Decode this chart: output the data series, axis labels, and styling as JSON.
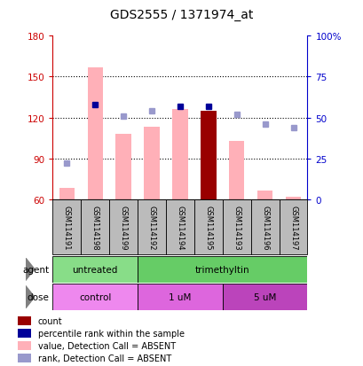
{
  "title": "GDS2555 / 1371974_at",
  "samples": [
    "GSM114191",
    "GSM114198",
    "GSM114199",
    "GSM114192",
    "GSM114194",
    "GSM114195",
    "GSM114193",
    "GSM114196",
    "GSM114197"
  ],
  "bar_values": [
    68,
    157,
    108,
    113,
    126,
    125,
    103,
    66,
    62
  ],
  "bar_absent": [
    true,
    true,
    true,
    true,
    true,
    false,
    true,
    true,
    true
  ],
  "rank_percent_values": [
    22,
    58,
    51,
    54,
    57,
    57,
    52,
    46,
    44
  ],
  "rank_absent": [
    true,
    false,
    true,
    true,
    false,
    false,
    true,
    true,
    true
  ],
  "ylim_left": [
    60,
    180
  ],
  "ylim_right": [
    0,
    100
  ],
  "yticks_left": [
    60,
    90,
    120,
    150,
    180
  ],
  "yticks_right": [
    0,
    25,
    50,
    75,
    100
  ],
  "ytick_labels_left": [
    "60",
    "90",
    "120",
    "150",
    "180"
  ],
  "ytick_labels_right": [
    "0",
    "25",
    "50",
    "75",
    "100%"
  ],
  "bar_color_absent": "#FFB0B8",
  "bar_color_present": "#990000",
  "rank_color_absent": "#9999CC",
  "rank_color_present": "#000099",
  "agent_groups": [
    {
      "label": "untreated",
      "start": 0,
      "end": 3,
      "color": "#88DD88"
    },
    {
      "label": "trimethyltin",
      "start": 3,
      "end": 9,
      "color": "#66CC66"
    }
  ],
  "dose_groups": [
    {
      "label": "control",
      "start": 0,
      "end": 3,
      "color": "#EE88EE"
    },
    {
      "label": "1 uM",
      "start": 3,
      "end": 6,
      "color": "#DD66DD"
    },
    {
      "label": "5 uM",
      "start": 6,
      "end": 9,
      "color": "#BB44BB"
    }
  ],
  "legend_items": [
    {
      "label": "count",
      "color": "#990000"
    },
    {
      "label": "percentile rank within the sample",
      "color": "#000099"
    },
    {
      "label": "value, Detection Call = ABSENT",
      "color": "#FFB0B8"
    },
    {
      "label": "rank, Detection Call = ABSENT",
      "color": "#9999CC"
    }
  ],
  "left_axis_color": "#CC0000",
  "right_axis_color": "#0000CC",
  "sample_box_color": "#BBBBBB"
}
